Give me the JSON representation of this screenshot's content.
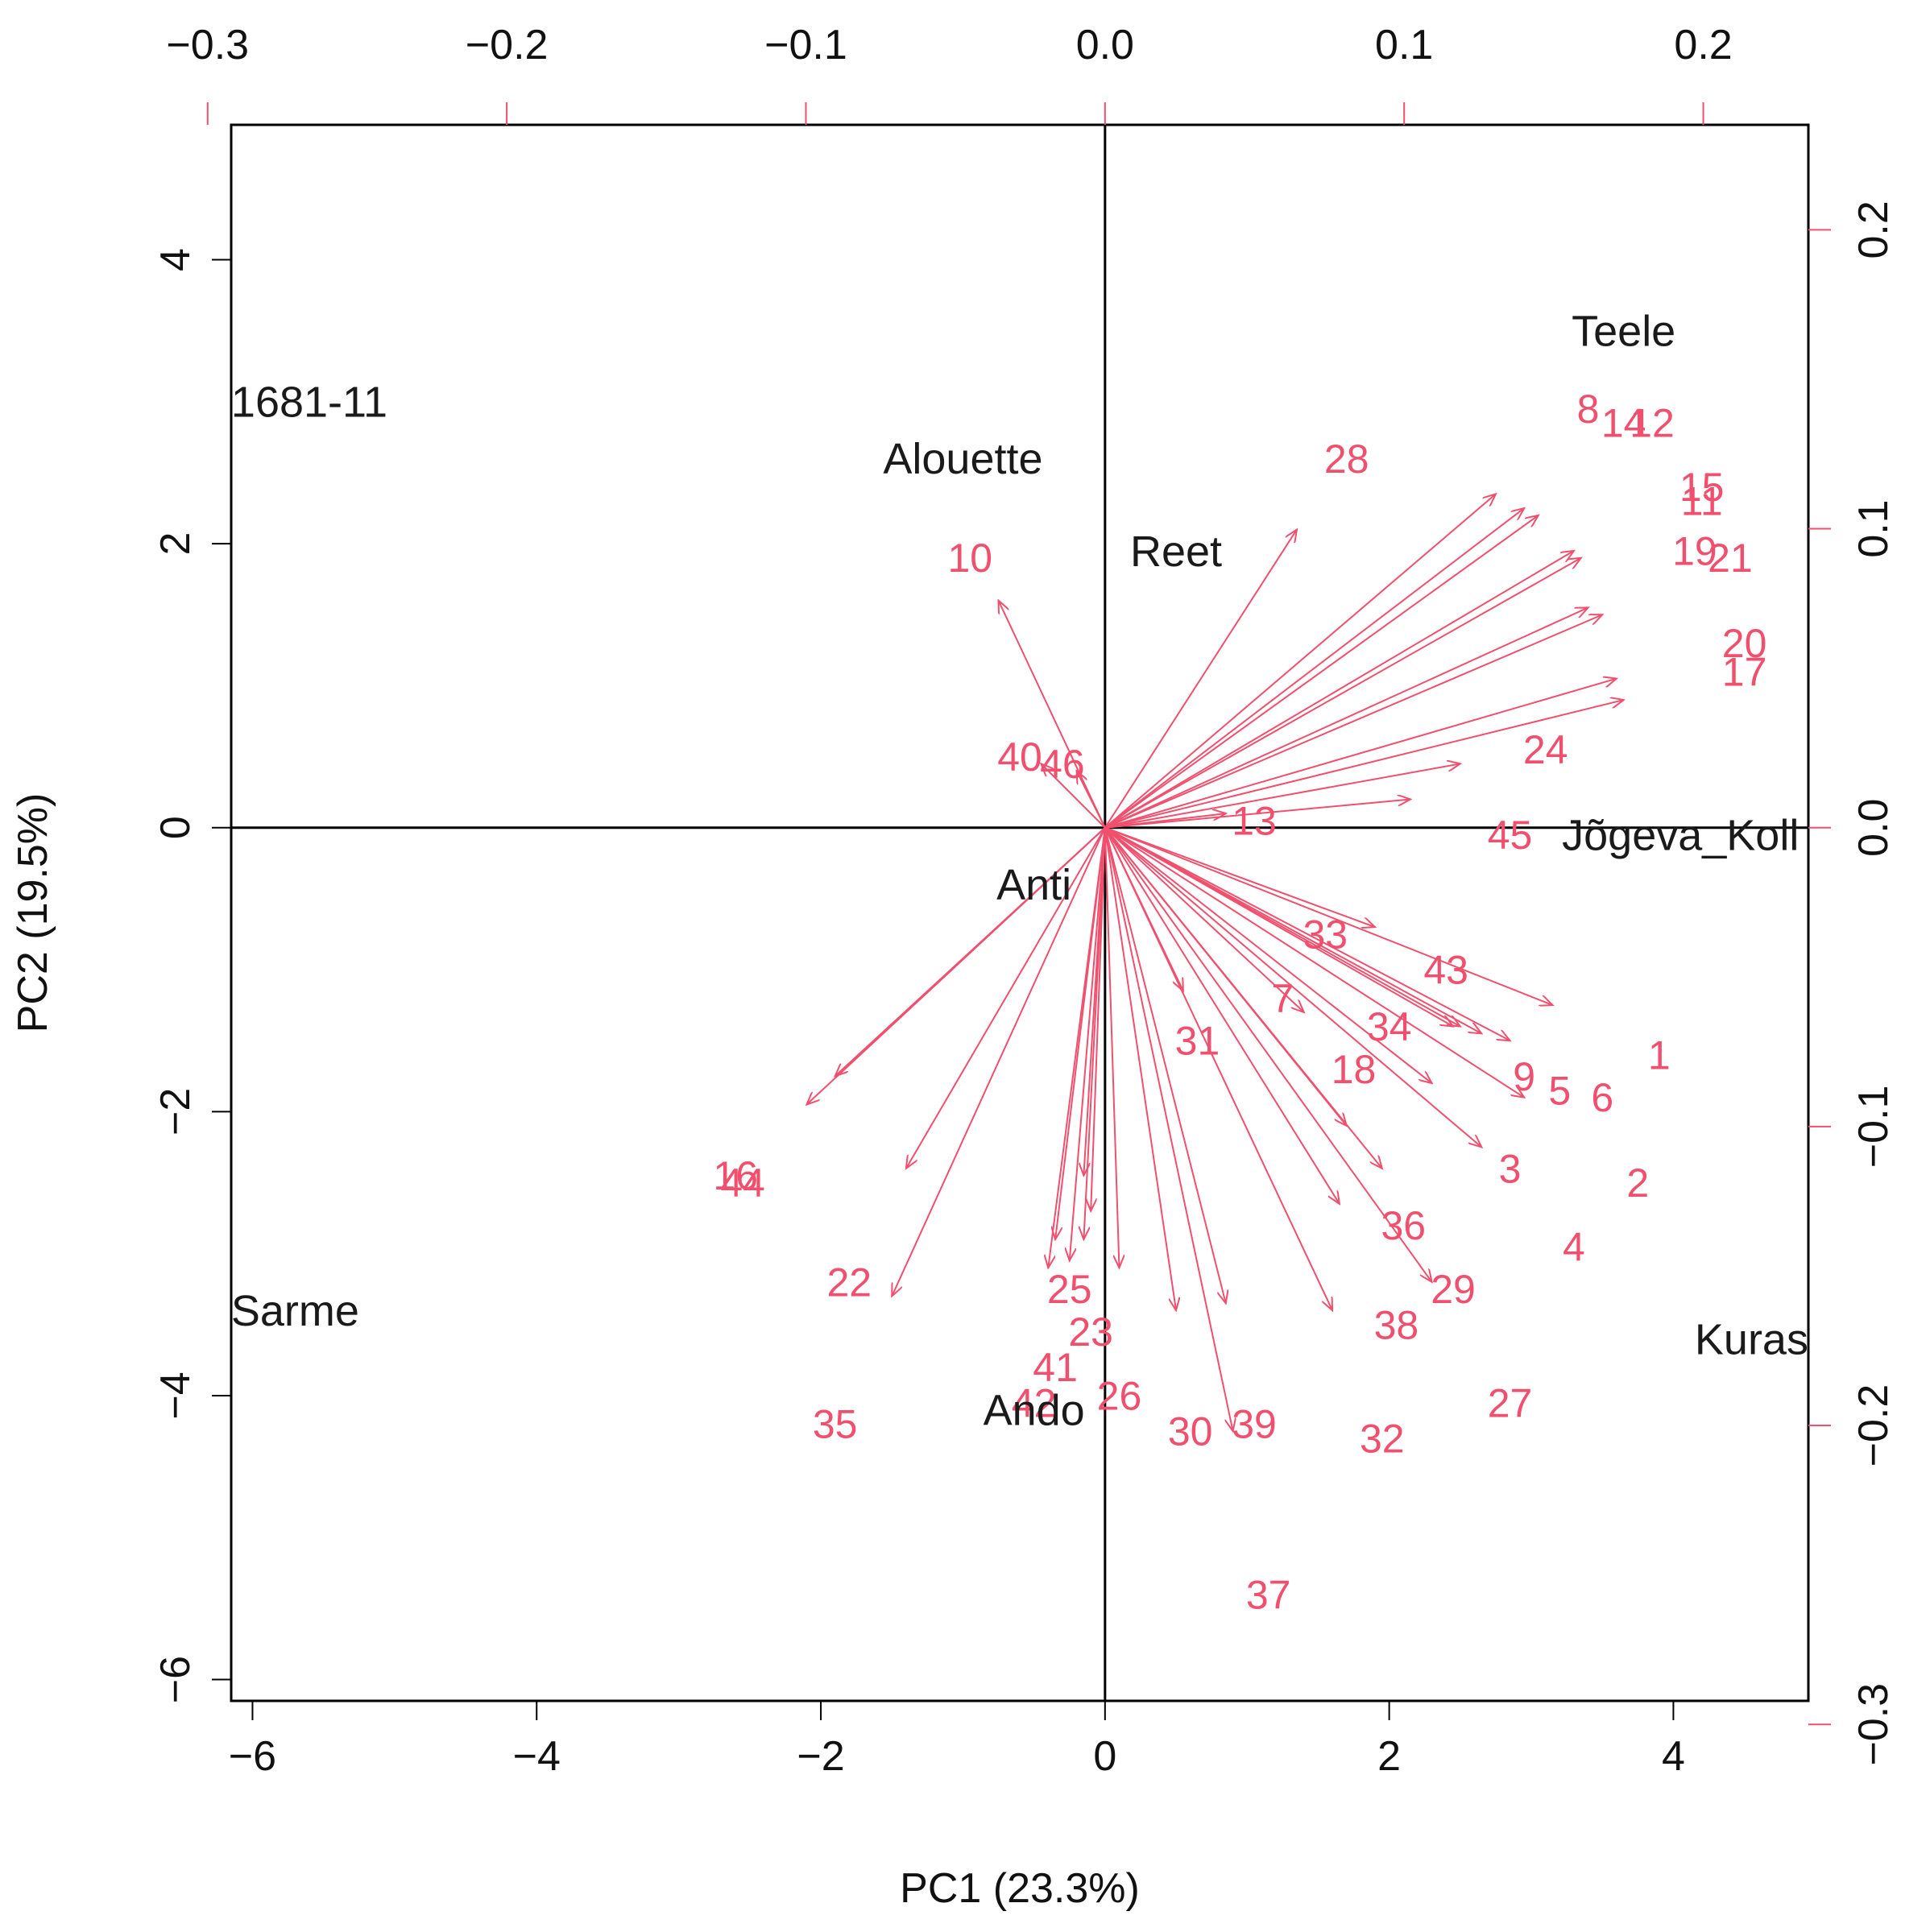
{
  "chart_data": {
    "type": "biplot",
    "xlabel": "PC1 (23.3%)",
    "ylabel": "PC2 (19.5%)",
    "xlim": [
      -6.15,
      4.95
    ],
    "ylim": [
      -6.15,
      4.95
    ],
    "x_ticks": [
      -6,
      -4,
      -2,
      0,
      2,
      4
    ],
    "y_ticks": [
      -6,
      -4,
      -2,
      0,
      2,
      4
    ],
    "x_tick_labels": [
      "−6",
      "−4",
      "−2",
      "0",
      "2",
      "4"
    ],
    "y_tick_labels": [
      "−6",
      "−4",
      "−2",
      "0",
      "2",
      "4"
    ],
    "top_ticks": [
      -0.3,
      -0.2,
      -0.1,
      0.0,
      0.1,
      0.2
    ],
    "top_tick_labels": [
      "−0.3",
      "−0.2",
      "−0.1",
      "0.0",
      "0.1",
      "0.2"
    ],
    "right_ticks": [
      -0.3,
      -0.2,
      -0.1,
      0.0,
      0.1,
      0.2
    ],
    "right_tick_labels": [
      "−0.3",
      "−0.2",
      "−0.1",
      "0.0",
      "0.1",
      "0.2"
    ],
    "loading_scale": 0.0475,
    "colors": {
      "observations": "#1a1a1a",
      "variables": "#f0506e",
      "axes": "#000000"
    },
    "observations": [
      {
        "label": "1681-11",
        "x": -5.6,
        "y": 3.0
      },
      {
        "label": "Alouette",
        "x": -1.0,
        "y": 2.6
      },
      {
        "label": "Reet",
        "x": 0.5,
        "y": 1.95
      },
      {
        "label": "Teele",
        "x": 3.65,
        "y": 3.5
      },
      {
        "label": "Jõgeva_Koll",
        "x": 4.05,
        "y": -0.05
      },
      {
        "label": "Anti",
        "x": -0.5,
        "y": -0.4
      },
      {
        "label": "Sarme",
        "x": -5.7,
        "y": -3.4
      },
      {
        "label": "Ando",
        "x": -0.5,
        "y": -4.1
      },
      {
        "label": "Kuras",
        "x": 4.55,
        "y": -3.6
      }
    ],
    "variables": [
      {
        "label": "28",
        "label_x": 1.7,
        "label_y": 2.6,
        "end_x": 1.35,
        "end_y": 2.1
      },
      {
        "label": "8",
        "label_x": 3.4,
        "label_y": 2.95,
        "end_x": 2.75,
        "end_y": 2.35
      },
      {
        "label": "14",
        "label_x": 3.65,
        "label_y": 2.85,
        "end_x": 2.95,
        "end_y": 2.25
      },
      {
        "label": "12",
        "label_x": 3.85,
        "label_y": 2.85,
        "end_x": 3.05,
        "end_y": 2.2
      },
      {
        "label": "15",
        "label_x": 4.2,
        "label_y": 2.4,
        "end_x": 3.3,
        "end_y": 1.95
      },
      {
        "label": "11",
        "label_x": 4.2,
        "label_y": 2.3,
        "end_x": 3.35,
        "end_y": 1.9
      },
      {
        "label": "19",
        "label_x": 4.15,
        "label_y": 1.95,
        "end_x": 3.4,
        "end_y": 1.55
      },
      {
        "label": "21",
        "label_x": 4.4,
        "label_y": 1.9,
        "end_x": 3.5,
        "end_y": 1.5
      },
      {
        "label": "20",
        "label_x": 4.5,
        "label_y": 1.3,
        "end_x": 3.6,
        "end_y": 1.05
      },
      {
        "label": "17",
        "label_x": 4.5,
        "label_y": 1.1,
        "end_x": 3.65,
        "end_y": 0.9
      },
      {
        "label": "24",
        "label_x": 3.1,
        "label_y": 0.55,
        "end_x": 2.5,
        "end_y": 0.45
      },
      {
        "label": "45",
        "label_x": 2.85,
        "label_y": -0.05,
        "end_x": 2.15,
        "end_y": 0.2
      },
      {
        "label": "13",
        "label_x": 1.05,
        "label_y": 0.05,
        "end_x": 0.85,
        "end_y": 0.1
      },
      {
        "label": "10",
        "label_x": -0.95,
        "label_y": 1.9,
        "end_x": -0.75,
        "end_y": 1.6
      },
      {
        "label": "40",
        "label_x": -0.6,
        "label_y": 0.5,
        "end_x": -0.45,
        "end_y": 0.45
      },
      {
        "label": "46",
        "label_x": -0.3,
        "label_y": 0.45,
        "end_x": -0.2,
        "end_y": 0.4
      },
      {
        "label": "33",
        "label_x": 1.55,
        "label_y": -0.75,
        "end_x": 1.9,
        "end_y": -0.7
      },
      {
        "label": "43",
        "label_x": 2.4,
        "label_y": -1.0,
        "end_x": 3.15,
        "end_y": -1.25
      },
      {
        "label": "7",
        "label_x": 1.25,
        "label_y": -1.2,
        "end_x": 1.4,
        "end_y": -1.3
      },
      {
        "label": "34",
        "label_x": 2.0,
        "label_y": -1.4,
        "end_x": 2.5,
        "end_y": -1.4
      },
      {
        "label": "31",
        "label_x": 0.65,
        "label_y": -1.5,
        "end_x": 0.55,
        "end_y": -1.15
      },
      {
        "label": "18",
        "label_x": 1.75,
        "label_y": -1.7,
        "end_x": 2.3,
        "end_y": -1.8
      },
      {
        "label": "9",
        "label_x": 2.95,
        "label_y": -1.75,
        "end_x": 2.95,
        "end_y": -1.9
      },
      {
        "label": "5",
        "label_x": 3.2,
        "label_y": -1.85,
        "end_x": 2.85,
        "end_y": -1.5
      },
      {
        "label": "6",
        "label_x": 3.5,
        "label_y": -1.9,
        "end_x": 2.65,
        "end_y": -1.45
      },
      {
        "label": "1",
        "label_x": 3.9,
        "label_y": -1.6,
        "end_x": 2.45,
        "end_y": -1.4
      },
      {
        "label": "3",
        "label_x": 2.85,
        "label_y": -2.4,
        "end_x": 2.65,
        "end_y": -2.25
      },
      {
        "label": "2",
        "label_x": 3.75,
        "label_y": -2.5,
        "end_x": 1.7,
        "end_y": -2.1
      },
      {
        "label": "36",
        "label_x": 2.1,
        "label_y": -2.8,
        "end_x": 1.95,
        "end_y": -2.4
      },
      {
        "label": "4",
        "label_x": 3.3,
        "label_y": -2.95,
        "end_x": 1.65,
        "end_y": -2.65
      },
      {
        "label": "29",
        "label_x": 2.45,
        "label_y": -3.25,
        "end_x": 2.3,
        "end_y": -3.2
      },
      {
        "label": "38",
        "label_x": 2.05,
        "label_y": -3.5,
        "end_x": 1.6,
        "end_y": -3.4
      },
      {
        "label": "27",
        "label_x": 2.85,
        "label_y": -4.05,
        "end_x": 0.85,
        "end_y": -3.35
      },
      {
        "label": "32",
        "label_x": 1.95,
        "label_y": -4.3,
        "end_x": 0.5,
        "end_y": -3.4
      },
      {
        "label": "39",
        "label_x": 1.05,
        "label_y": -4.2,
        "end_x": 0.9,
        "end_y": -4.25
      },
      {
        "label": "30",
        "label_x": 0.6,
        "label_y": -4.25,
        "end_x": 0.1,
        "end_y": -3.1
      },
      {
        "label": "37",
        "label_x": 1.15,
        "label_y": -5.4,
        "end_x": -0.15,
        "end_y": -2.9
      },
      {
        "label": "25",
        "label_x": -0.25,
        "label_y": -3.25,
        "end_x": -0.25,
        "end_y": -3.05
      },
      {
        "label": "23",
        "label_x": -0.1,
        "label_y": -3.55,
        "end_x": -0.15,
        "end_y": -2.45
      },
      {
        "label": "41",
        "label_x": -0.35,
        "label_y": -3.8,
        "end_x": -0.4,
        "end_y": -3.1
      },
      {
        "label": "26",
        "label_x": 0.1,
        "label_y": -4.0,
        "end_x": -0.1,
        "end_y": -2.7
      },
      {
        "label": "42",
        "label_x": -0.5,
        "label_y": -4.05,
        "end_x": -0.35,
        "end_y": -2.9
      },
      {
        "label": "22",
        "label_x": -1.8,
        "label_y": -3.2,
        "end_x": -1.5,
        "end_y": -3.3
      },
      {
        "label": "35",
        "label_x": -1.9,
        "label_y": -4.2,
        "end_x": -1.4,
        "end_y": -2.4
      },
      {
        "label": "16",
        "label_x": -2.6,
        "label_y": -2.45,
        "end_x": -2.1,
        "end_y": -1.95
      },
      {
        "label": "44",
        "label_x": -2.55,
        "label_y": -2.5,
        "end_x": -1.9,
        "end_y": -1.75
      }
    ]
  }
}
